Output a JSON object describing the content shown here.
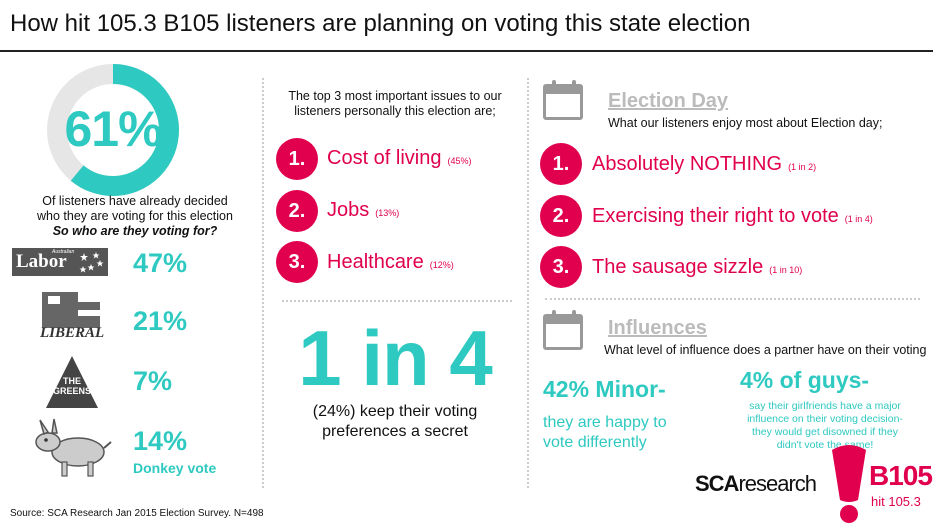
{
  "title": "How hit 105.3 B105 listeners are planning on voting this state election",
  "decided": {
    "percent": "61%",
    "progress": 0.61,
    "line1": "Of listeners have already decided",
    "line2": "who they are voting for this election",
    "question": "So who are they voting for?"
  },
  "parties": [
    {
      "name": "Labor",
      "logo_text": "Labor",
      "logo_small": "Australian",
      "pct": "47%"
    },
    {
      "name": "Liberal",
      "logo_text": "LIBERAL",
      "pct": "21%"
    },
    {
      "name": "The Greens",
      "logo_text_1": "THE",
      "logo_text_2": "GREENS",
      "pct": "7%"
    },
    {
      "name": "Donkey",
      "pct": "14%",
      "caption": "Donkey vote"
    }
  ],
  "issues": {
    "intro_line1": "The top 3 most important issues to our",
    "intro_line2": "listeners personally this election are;",
    "items": [
      {
        "num": "1.",
        "label": "Cost of living",
        "pct": "(45%)"
      },
      {
        "num": "2.",
        "label": "Jobs",
        "pct": "(13%)"
      },
      {
        "num": "3.",
        "label": "Healthcare",
        "pct": "(12%)"
      }
    ]
  },
  "secret": {
    "big": "1 in 4",
    "line1": "(24%) keep their voting",
    "line2": "preferences a secret"
  },
  "election_day": {
    "title": "Election Day",
    "subtitle": "What our listeners enjoy most about Election day;",
    "items": [
      {
        "num": "1.",
        "label": "Absolutely NOTHING",
        "note": "(1 in 2)"
      },
      {
        "num": "2.",
        "label": "Exercising their right to vote",
        "note": "(1 in 4)"
      },
      {
        "num": "3.",
        "label": "The sausage sizzle",
        "note": "(1 in 10)"
      }
    ]
  },
  "influences": {
    "title": "Influences",
    "subtitle": "What level of influence does a partner have on their voting",
    "minor_head": "42% Minor-",
    "minor_line1": "they are happy to",
    "minor_line2": "vote differently",
    "guys_head": "4% of guys-",
    "guys_line1": "say their girlfriends have a major",
    "guys_line2": "influence on their voting decision-",
    "guys_line3": "they would get disowned if they",
    "guys_line4": "didn't vote the same!"
  },
  "logos": {
    "sca_bold": "SCA",
    "sca_rest": "research",
    "b105": "B105",
    "b105_sub": "hit 105.3"
  },
  "source": "Source: SCA Research Jan 2015 Election Survey. N=498",
  "colors": {
    "teal": "#2ec9c0",
    "pink": "#e0004e",
    "grey": "#bbbbbb"
  }
}
